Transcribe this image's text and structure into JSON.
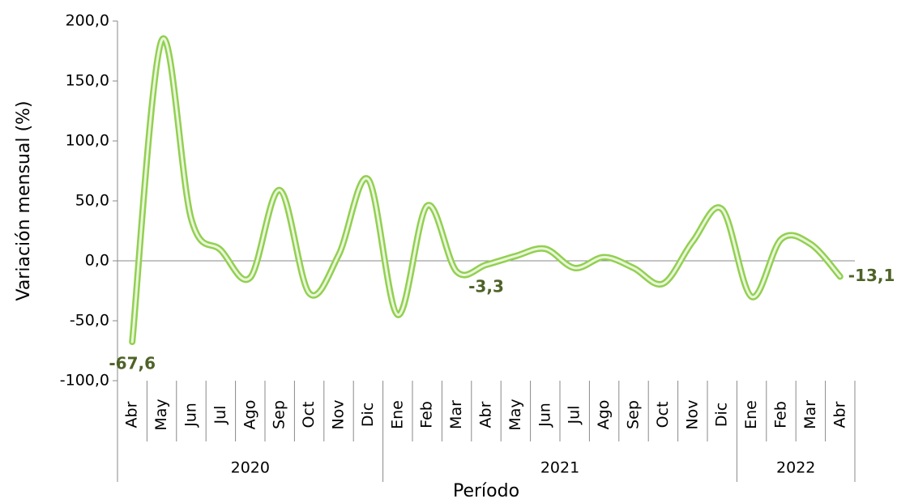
{
  "chart_data": {
    "type": "line",
    "y_label": "Variación mensual (%)",
    "x_label": "Período",
    "groups": [
      {
        "label": "2020",
        "categories": [
          "Abr",
          "May",
          "Jun",
          "Jul",
          "Ago",
          "Sep",
          "Oct",
          "Nov",
          "Dic"
        ]
      },
      {
        "label": "2021",
        "categories": [
          "Ene",
          "Feb",
          "Mar",
          "Abr",
          "May",
          "Jun",
          "Jul",
          "Ago",
          "Sep",
          "Oct",
          "Nov",
          "Dic"
        ]
      },
      {
        "label": "2022",
        "categories": [
          "Ene",
          "Feb",
          "Mar",
          "Abr"
        ]
      }
    ],
    "values": [
      -67.6,
      184,
      35,
      9,
      -14,
      59,
      -27,
      5,
      68,
      -45,
      46,
      -9,
      -3.3,
      4,
      10,
      -6,
      3,
      -6,
      -19,
      16,
      43,
      -30,
      18,
      14,
      -13.1
    ],
    "value_labels": [
      "-67,6",
      null,
      null,
      null,
      null,
      null,
      null,
      null,
      null,
      null,
      null,
      null,
      "-3,3",
      null,
      null,
      null,
      null,
      null,
      null,
      null,
      null,
      null,
      null,
      null,
      "-13,1"
    ],
    "color": "#92d050",
    "ylim": [
      -100,
      200
    ],
    "yticks": [
      {
        "value": -100,
        "label": "-100,0"
      },
      {
        "value": -50,
        "label": "-50,0"
      },
      {
        "value": 0,
        "label": "0,0"
      },
      {
        "value": 50,
        "label": "50,0"
      },
      {
        "value": 100,
        "label": "100,0"
      },
      {
        "value": 150,
        "label": "150,0"
      },
      {
        "value": 200,
        "label": "200,0"
      }
    ]
  }
}
